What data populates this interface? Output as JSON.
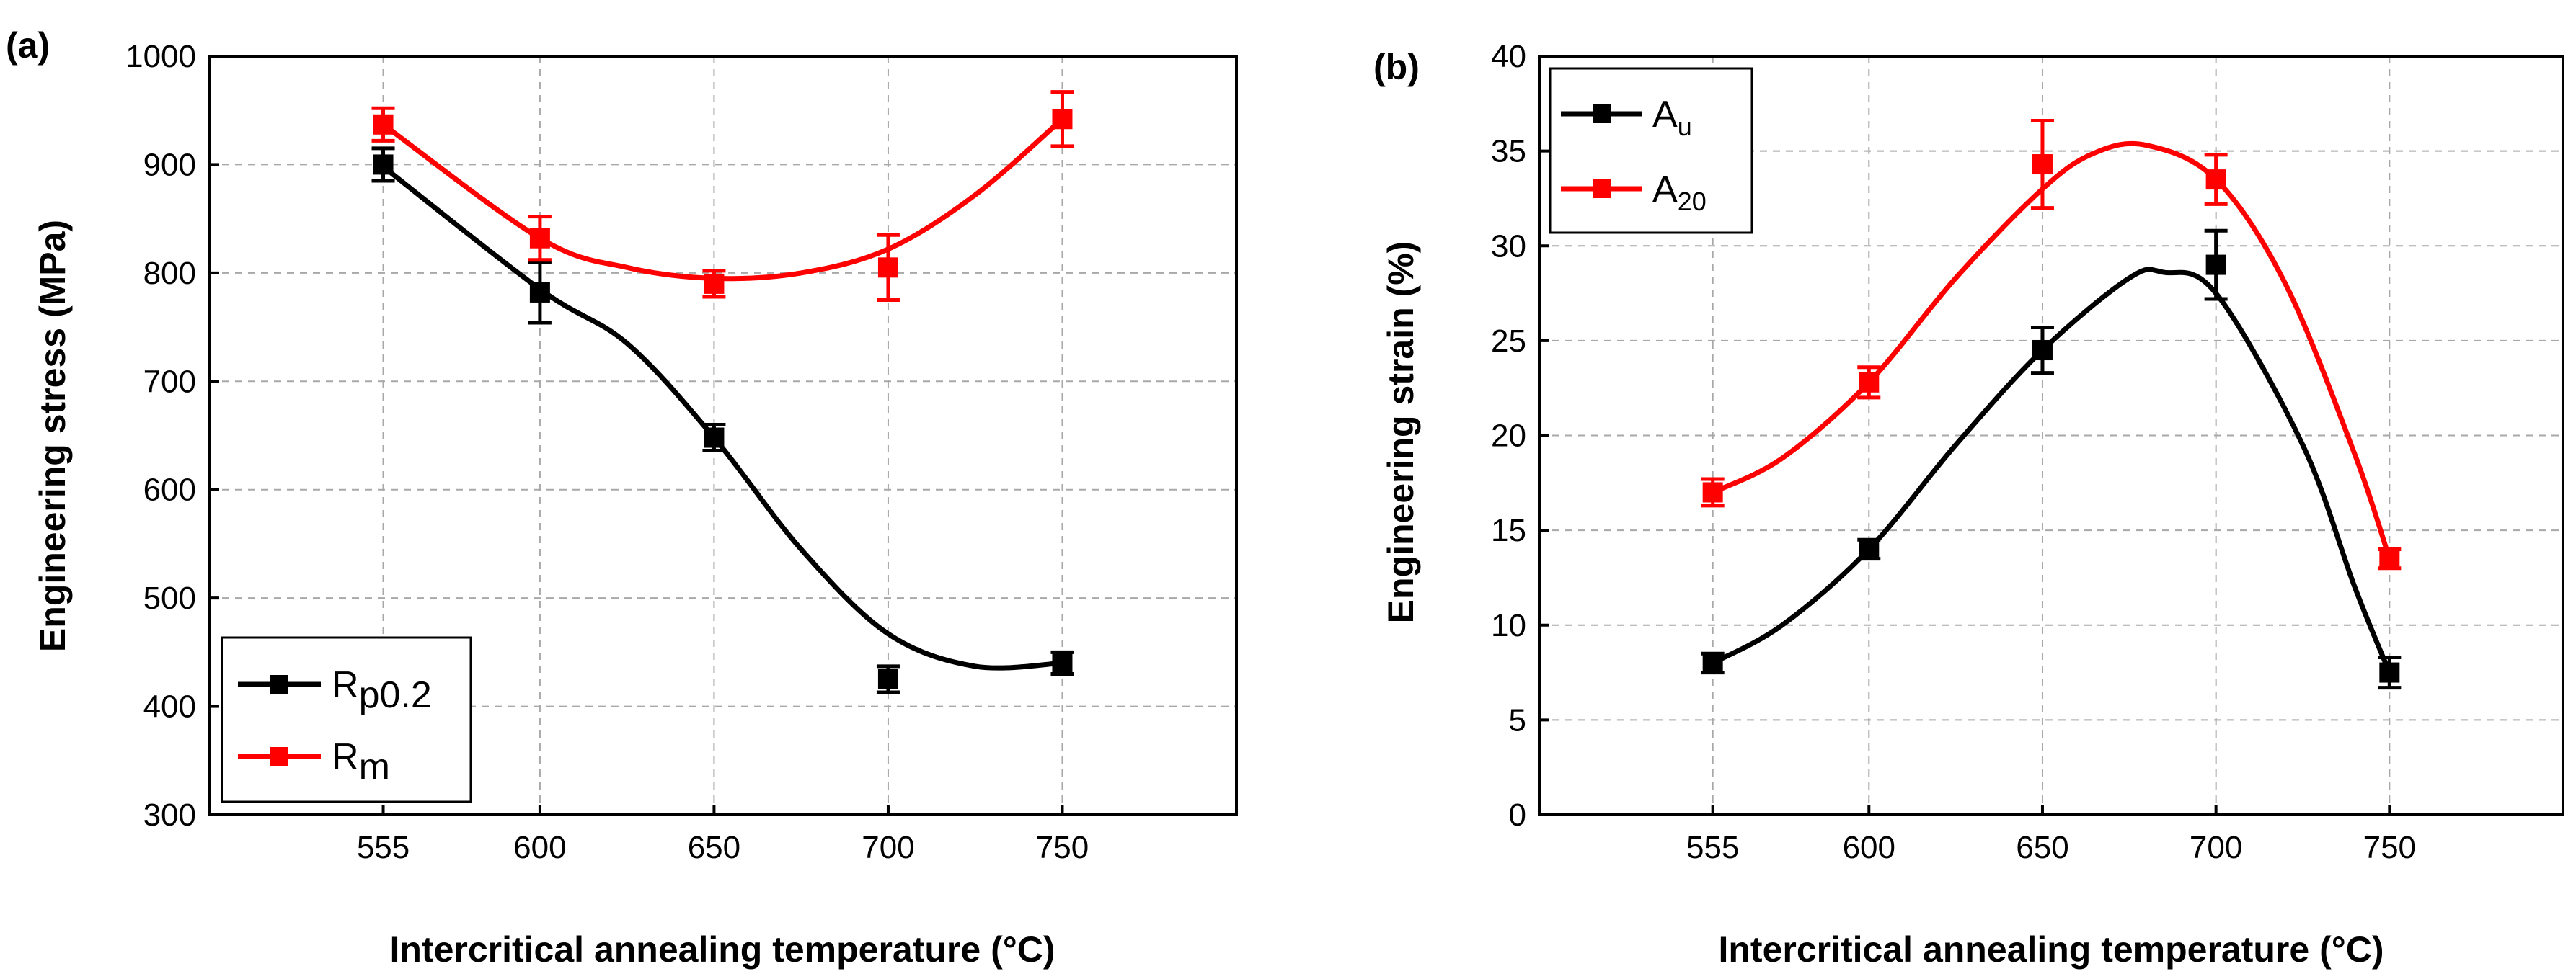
{
  "chart_data": [
    {
      "type": "line",
      "panel_label": "(a)",
      "xlabel": "Intercritical annealing temperature (°C)",
      "ylabel": "Engineering stress (MPa)",
      "title": "",
      "x": [
        555,
        600,
        650,
        700,
        750
      ],
      "x_ticks": [
        "555",
        "600",
        "650",
        "700",
        "750"
      ],
      "xlim": [
        505,
        800
      ],
      "ylim": [
        300,
        1000
      ],
      "y_ticks": [
        "300",
        "400",
        "500",
        "600",
        "700",
        "800",
        "900",
        "1000"
      ],
      "grid": true,
      "legend_position": "bottom-left",
      "series": [
        {
          "name_main": "R",
          "name_sub": "p0.2",
          "color": "#000000",
          "values": [
            900,
            782,
            648,
            425,
            440
          ],
          "errors": [
            15,
            28,
            12,
            12,
            10
          ],
          "smooth_fit": [
            [
              555,
              898
            ],
            [
              600,
              785
            ],
            [
              625,
              735
            ],
            [
              650,
              648
            ],
            [
              675,
              545
            ],
            [
              700,
              467
            ],
            [
              725,
              437
            ],
            [
              750,
              440
            ]
          ]
        },
        {
          "name_main": "R",
          "name_sub": "m",
          "color": "#ff0000",
          "values": [
            937,
            832,
            790,
            805,
            942
          ],
          "errors": [
            15,
            20,
            12,
            30,
            25
          ],
          "smooth_fit": [
            [
              555,
              937
            ],
            [
              600,
              832
            ],
            [
              625,
              805
            ],
            [
              650,
              795
            ],
            [
              675,
              800
            ],
            [
              700,
              822
            ],
            [
              725,
              872
            ],
            [
              750,
              942
            ]
          ]
        }
      ]
    },
    {
      "type": "line",
      "panel_label": "(b)",
      "xlabel": "Intercritical annealing temperature (°C)",
      "ylabel": "Engineering strain (%)",
      "title": "",
      "x": [
        555,
        600,
        650,
        700,
        750
      ],
      "x_ticks": [
        "555",
        "600",
        "650",
        "700",
        "750"
      ],
      "xlim": [
        505,
        800
      ],
      "ylim": [
        0,
        40
      ],
      "y_ticks": [
        "0",
        "5",
        "10",
        "15",
        "20",
        "25",
        "30",
        "35",
        "40"
      ],
      "grid": true,
      "legend_position": "top-left",
      "series": [
        {
          "name_main": "A",
          "name_sub": "u",
          "color": "#000000",
          "values": [
            8,
            14,
            24.5,
            29,
            7.5
          ],
          "errors": [
            0.5,
            0.5,
            1.2,
            1.8,
            0.8
          ],
          "smooth_fit": [
            [
              555,
              8
            ],
            [
              575,
              10
            ],
            [
              600,
              14
            ],
            [
              625,
              19.5
            ],
            [
              650,
              24.5
            ],
            [
              675,
              28.3
            ],
            [
              685,
              28.6
            ],
            [
              700,
              27.5
            ],
            [
              725,
              19.5
            ],
            [
              740,
              12
            ],
            [
              750,
              7.5
            ]
          ]
        },
        {
          "name_main": "A",
          "name_sub": "20",
          "color": "#ff0000",
          "values": [
            17,
            22.8,
            34.3,
            33.5,
            13.5
          ],
          "errors": [
            0.7,
            0.8,
            2.3,
            1.3,
            0.5
          ],
          "smooth_fit": [
            [
              555,
              17
            ],
            [
              575,
              18.8
            ],
            [
              600,
              22.8
            ],
            [
              625,
              28.3
            ],
            [
              650,
              33
            ],
            [
              665,
              34.9
            ],
            [
              680,
              35.3
            ],
            [
              700,
              33.5
            ],
            [
              720,
              28
            ],
            [
              740,
              19
            ],
            [
              750,
              13.5
            ]
          ]
        }
      ]
    }
  ]
}
